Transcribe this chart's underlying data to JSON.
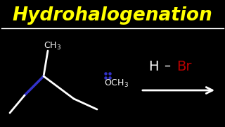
{
  "bg_color": "#000000",
  "title": "Hydrohalogenation",
  "title_color": "#FFFF00",
  "title_fontsize": 19,
  "separator_color": "#FFFFFF",
  "structure_color": "#FFFFFF",
  "double_bond_color": "#3333CC",
  "lone_pair_color": "#3333CC",
  "H_color": "#FFFFFF",
  "Br_color": "#BB0000",
  "arrow_color": "#FFFFFF",
  "figsize": [
    3.2,
    1.8
  ],
  "dpi": 100
}
